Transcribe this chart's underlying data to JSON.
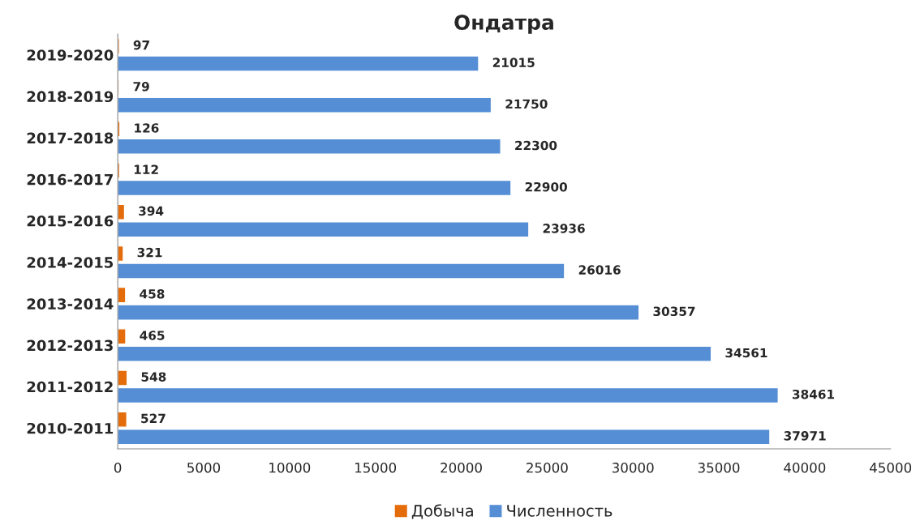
{
  "chart_data": {
    "type": "bar",
    "orientation": "horizontal",
    "title": "Ондатра",
    "categories": [
      "2019-2020",
      "2018-2019",
      "2017-2018",
      "2016-2017",
      "2015-2016",
      "2014-2015",
      "2013-2014",
      "2012-2013",
      "2011-2012",
      "2010-2011"
    ],
    "series": [
      {
        "name": "Добыча",
        "color": "#e46c0a",
        "values": [
          97,
          79,
          126,
          112,
          394,
          321,
          458,
          465,
          548,
          527
        ]
      },
      {
        "name": "Численность",
        "color": "#558ed5",
        "values": [
          21015,
          21750,
          22300,
          22900,
          23936,
          26016,
          30357,
          34561,
          38461,
          37971
        ]
      }
    ],
    "xlim": [
      0,
      45000
    ],
    "xticks": [
      0,
      5000,
      10000,
      15000,
      20000,
      25000,
      30000,
      35000,
      40000,
      45000
    ],
    "data_labels": true,
    "legend": "bottom",
    "grid": false
  }
}
